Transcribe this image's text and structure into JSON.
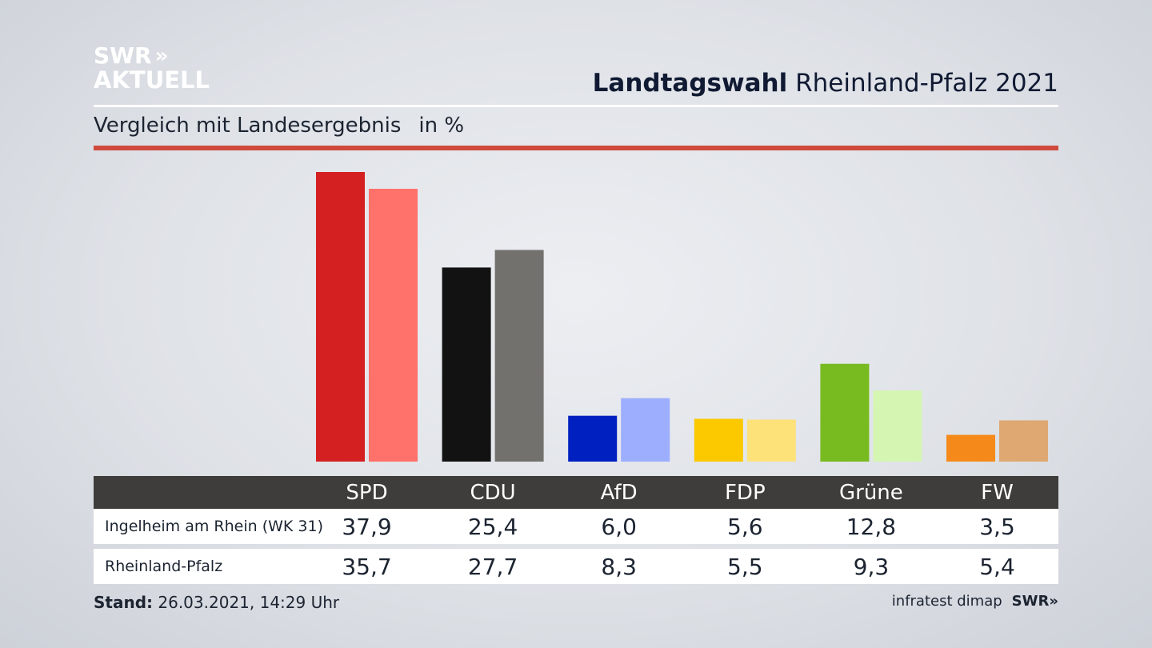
{
  "logo": {
    "line1": "SWR",
    "line1_mark": "»",
    "line2": "AKTUELL"
  },
  "header": {
    "title_bold": "Landtagswahl",
    "title_rest": "Rheinland-Pfalz 2021"
  },
  "subtitle": {
    "text": "Vergleich mit Landesergebnis",
    "unit": "in %"
  },
  "table": {
    "columns": [
      "SPD",
      "CDU",
      "AfD",
      "FDP",
      "Grüne",
      "FW"
    ],
    "rows": [
      {
        "label": "Ingelheim am Rhein (WK 31)",
        "values": [
          "37,9",
          "25,4",
          "6,0",
          "5,6",
          "12,8",
          "3,5"
        ]
      },
      {
        "label": "Rheinland-Pfalz",
        "values": [
          "35,7",
          "27,7",
          "8,3",
          "5,5",
          "9,3",
          "5,4"
        ]
      }
    ]
  },
  "footer": {
    "stand_label": "Stand:",
    "stand_value": "26.03.2021, 14:29 Uhr",
    "source": "infratest dimap",
    "source_logo": "SWR",
    "source_logo_mark": "»"
  },
  "chart_data": {
    "type": "bar",
    "categories": [
      "SPD",
      "CDU",
      "AfD",
      "FDP",
      "Grüne",
      "FW"
    ],
    "series": [
      {
        "name": "Ingelheim am Rhein (WK 31)",
        "values": [
          37.9,
          25.4,
          6.0,
          5.6,
          12.8,
          3.5
        ],
        "colors": [
          "#d42020",
          "#121212",
          "#0020c0",
          "#fcc800",
          "#78bb20",
          "#f58a1a"
        ]
      },
      {
        "name": "Rheinland-Pfalz",
        "values": [
          35.7,
          27.7,
          8.3,
          5.5,
          9.3,
          5.4
        ],
        "colors": [
          "#ff716b",
          "#73716e",
          "#9eaefe",
          "#fde27a",
          "#d5f5b2",
          "#dfa872"
        ]
      }
    ],
    "ylim": [
      0,
      37.9
    ],
    "grid": false
  }
}
